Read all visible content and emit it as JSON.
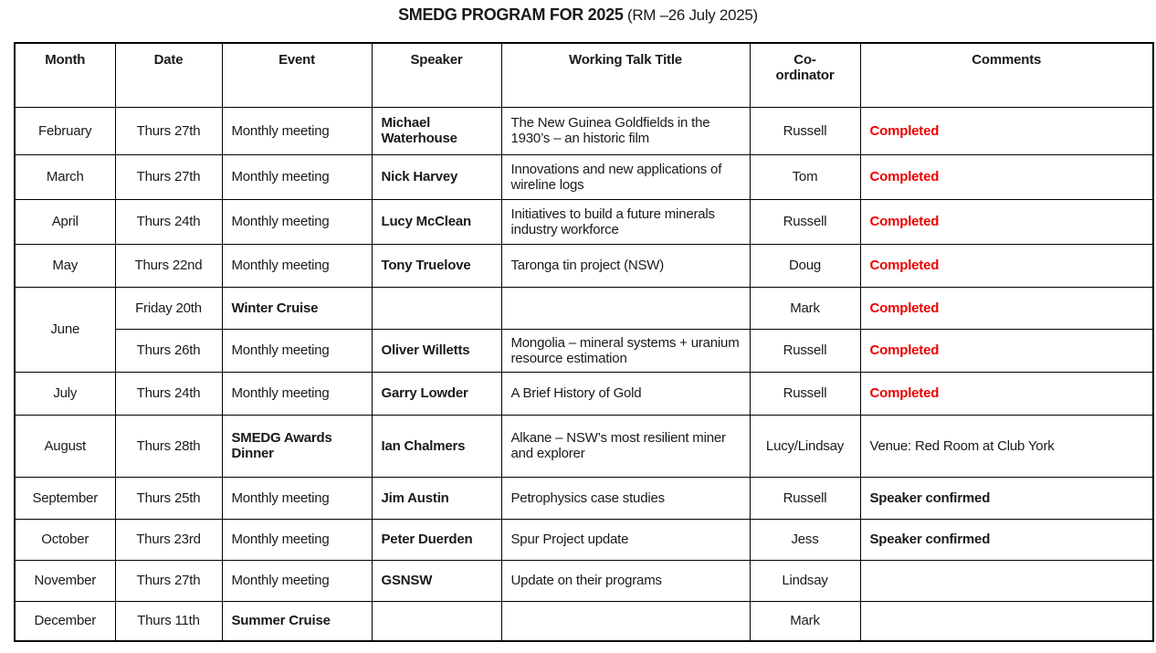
{
  "title": {
    "main": "SMEDG PROGRAM FOR 2025",
    "suffix": " (RM –26 July 2025)"
  },
  "colors": {
    "completed_red": "#ed0000",
    "text_black": "#1a1a1a",
    "border_black": "#000000"
  },
  "table": {
    "headers": [
      "Month",
      "Date",
      "Event",
      "Speaker",
      "Working Talk Title",
      "Co-ordinator",
      "Comments"
    ],
    "rows": [
      {
        "month": "February",
        "month_rowspan": 1,
        "date": "Thurs 27th",
        "event": "Monthly meeting",
        "event_bold": false,
        "speaker": "Michael Waterhouse",
        "talk_title": "The New Guinea Goldfields in the 1930’s – an historic film",
        "coordinator": "Russell",
        "comment": "Completed",
        "comment_style": "completed"
      },
      {
        "month": "March",
        "month_rowspan": 1,
        "date": "Thurs 27th",
        "event": "Monthly meeting",
        "event_bold": false,
        "speaker": "Nick Harvey",
        "talk_title": "Innovations and new applications of wireline logs",
        "coordinator": "Tom",
        "comment": "Completed",
        "comment_style": "completed"
      },
      {
        "month": "April",
        "month_rowspan": 1,
        "date": "Thurs 24th",
        "event": "Monthly meeting",
        "event_bold": false,
        "speaker": "Lucy McClean",
        "talk_title": "Initiatives to build a future minerals industry workforce",
        "coordinator": "Russell",
        "comment": "Completed",
        "comment_style": "completed"
      },
      {
        "month": "May",
        "month_rowspan": 1,
        "date": "Thurs 22nd",
        "event": "Monthly meeting",
        "event_bold": false,
        "speaker": "Tony Truelove",
        "talk_title": "Taronga tin project (NSW)",
        "coordinator": "Doug",
        "comment": "Completed",
        "comment_style": "completed"
      },
      {
        "month": "June",
        "month_rowspan": 2,
        "date": "Friday 20th",
        "event": "Winter Cruise",
        "event_bold": true,
        "speaker": "",
        "talk_title": "",
        "coordinator": "Mark",
        "comment": "Completed",
        "comment_style": "completed"
      },
      {
        "month": null,
        "month_rowspan": 0,
        "date": "Thurs 26th",
        "event": "Monthly meeting",
        "event_bold": false,
        "speaker": "Oliver Willetts",
        "talk_title": "Mongolia – mineral systems + uranium resource estimation",
        "coordinator": "Russell",
        "comment": "Completed",
        "comment_style": "completed"
      },
      {
        "month": "July",
        "month_rowspan": 1,
        "date": "Thurs 24th",
        "event": "Monthly meeting",
        "event_bold": false,
        "speaker": "Garry Lowder",
        "talk_title": "A Brief History of Gold",
        "coordinator": "Russell",
        "comment": "Completed",
        "comment_style": "completed"
      },
      {
        "month": "August",
        "month_rowspan": 1,
        "date": "Thurs 28th",
        "event": "SMEDG Awards Dinner",
        "event_bold": true,
        "speaker": "Ian Chalmers",
        "talk_title": "Alkane – NSW’s most resilient miner and explorer",
        "coordinator": "Lucy/Lindsay",
        "comment": "Venue: Red Room at Club York",
        "comment_style": "normal"
      },
      {
        "month": "September",
        "month_rowspan": 1,
        "date": "Thurs 25th",
        "event": "Monthly meeting",
        "event_bold": false,
        "speaker": "Jim Austin",
        "talk_title": "Petrophysics case studies",
        "coordinator": "Russell",
        "comment": "Speaker confirmed",
        "comment_style": "confirmed"
      },
      {
        "month": "October",
        "month_rowspan": 1,
        "date": "Thurs 23rd",
        "event": "Monthly meeting",
        "event_bold": false,
        "speaker": "Peter Duerden",
        "talk_title": "Spur Project update",
        "coordinator": "Jess",
        "comment": "Speaker confirmed",
        "comment_style": "confirmed"
      },
      {
        "month": "November",
        "month_rowspan": 1,
        "date": "Thurs 27th",
        "event": "Monthly meeting",
        "event_bold": false,
        "speaker": "GSNSW",
        "talk_title": "Update on their programs",
        "coordinator": "Lindsay",
        "comment": "",
        "comment_style": "none"
      },
      {
        "month": "December",
        "month_rowspan": 1,
        "date": "Thurs 11th",
        "event": "Summer Cruise",
        "event_bold": true,
        "speaker": "",
        "talk_title": "",
        "coordinator": "Mark",
        "comment": "",
        "comment_style": "none"
      }
    ]
  }
}
